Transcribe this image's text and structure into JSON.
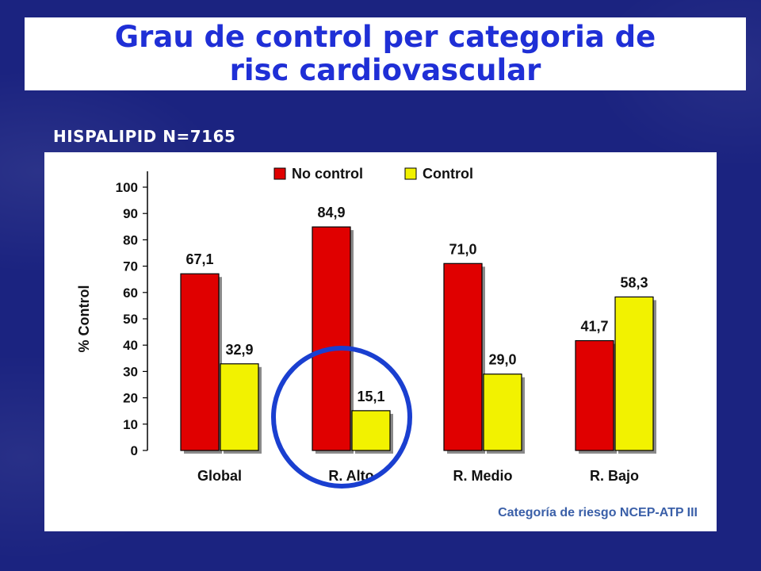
{
  "slide": {
    "title": "Grau de control per categoria de\nrisc cardiovascular",
    "subtitle": "HISPALIPID N=7165"
  },
  "chart_data": {
    "type": "bar",
    "categories": [
      "Global",
      "R. Alto",
      "R. Medio",
      "R. Bajo"
    ],
    "series": [
      {
        "name": "No control",
        "values": [
          67.1,
          84.9,
          71.0,
          41.7
        ],
        "labels": [
          "67,1",
          "84,9",
          "71,0",
          "41,7"
        ],
        "color": "#e00000"
      },
      {
        "name": "Control",
        "values": [
          32.9,
          15.1,
          29.0,
          58.3
        ],
        "labels": [
          "32,9",
          "15,1",
          "29,0",
          "58,3"
        ],
        "color": "#f2f200"
      }
    ],
    "ylabel": "% Control",
    "ylim": [
      0,
      100
    ],
    "yticks": [
      0,
      10,
      20,
      30,
      40,
      50,
      60,
      70,
      80,
      90,
      100
    ],
    "xlabel": "Categoría de riesgo NCEP-ATP III",
    "legend": "top",
    "highlight_category": "R. Alto",
    "highlight_color": "#1a3fd0"
  }
}
